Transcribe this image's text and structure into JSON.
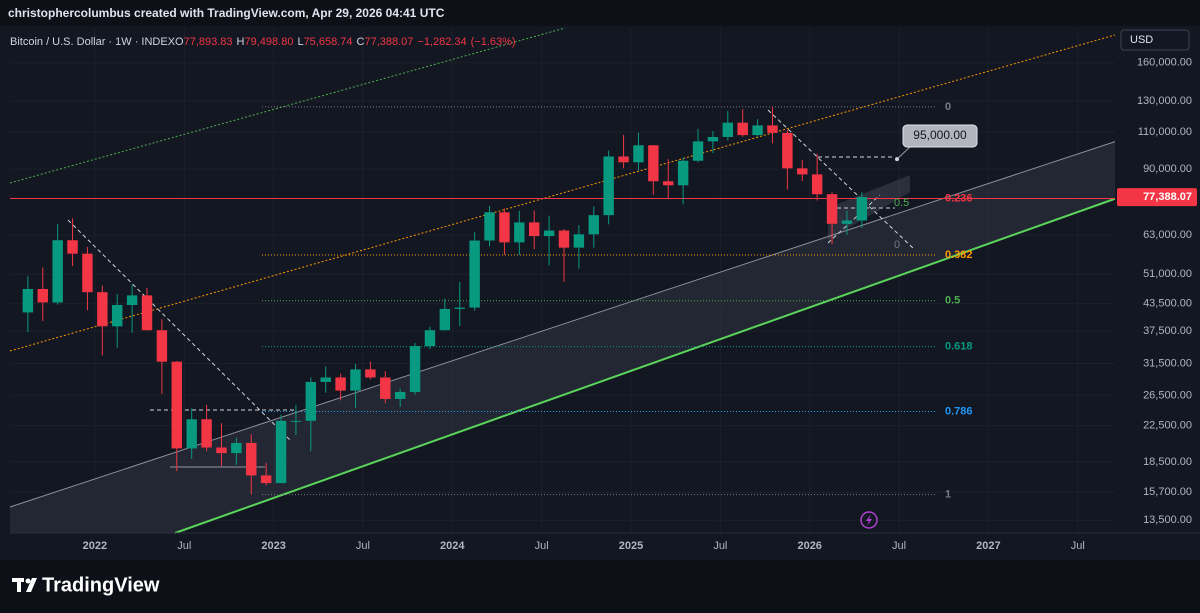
{
  "header": "christophercolumbus created with TradingView.com, Apr 29, 2026 04:41 UTC",
  "brand": "TradingView",
  "chart_data": {
    "type": "candlestick",
    "symbol": "Bitcoin / U.S. Dollar · 1W · INDEX",
    "ohlc": [
      {
        "key": "O",
        "value": 77893.83,
        "label": "77,893.83"
      },
      {
        "key": "H",
        "value": 79498.8,
        "label": "79,498.80"
      },
      {
        "key": "L",
        "value": 75658.74,
        "label": "75,658.74"
      },
      {
        "key": "C",
        "value": 77388.07,
        "label": "77,388.07"
      }
    ],
    "change": {
      "value": -1282.34,
      "label": "−1,282.34"
    },
    "change_pct": {
      "value": -1.63,
      "label": "(−1.63%)"
    },
    "currency": "USD",
    "last_price": {
      "value": 77388.07,
      "label": "77,388.07"
    },
    "x": [
      -5,
      -4,
      -3,
      -2,
      -1,
      0,
      1,
      2,
      3,
      4,
      5,
      6,
      7,
      8,
      9,
      10,
      11,
      12,
      13,
      14,
      15,
      16,
      17,
      18,
      19,
      20,
      21,
      22,
      23,
      24,
      25,
      26,
      27,
      28,
      29,
      30,
      31,
      32,
      33,
      34,
      35,
      36,
      37,
      38,
      39,
      40,
      41,
      42,
      43,
      44,
      45,
      46,
      47,
      48,
      49,
      50,
      51
    ],
    "open": [
      41500,
      47100,
      43800,
      61300,
      57000,
      46300,
      38500,
      43200,
      45500,
      37700,
      31800,
      19900,
      23300,
      20000,
      19400,
      20500,
      17200,
      16500,
      23100,
      23100,
      28500,
      29200,
      27200,
      30500,
      29200,
      26000,
      27000,
      34600,
      37700,
      42300,
      42600,
      61200,
      71300,
      60600,
      67500,
      62700,
      64600,
      58900,
      63300,
      70200,
      96400,
      93400,
      102400,
      84300,
      82500,
      94200,
      104600,
      107100,
      115700,
      108200,
      114000,
      109500,
      90400,
      87500,
      78600,
      67000,
      68200
    ],
    "high": [
      50500,
      52900,
      67000,
      69000,
      59100,
      48000,
      45800,
      48200,
      47400,
      40000,
      31900,
      24700,
      25200,
      22800,
      21100,
      21500,
      18400,
      23900,
      25200,
      29200,
      31000,
      29800,
      31400,
      31800,
      30200,
      27500,
      35200,
      38400,
      44700,
      48900,
      64000,
      73800,
      72800,
      71900,
      72000,
      70000,
      65100,
      66500,
      73600,
      99600,
      108300,
      109600,
      102500,
      95000,
      95800,
      111900,
      110600,
      123200,
      124500,
      117900,
      126200,
      111200,
      94600,
      97900,
      79500,
      72000,
      79500
    ],
    "low": [
      37300,
      39600,
      43300,
      53300,
      42000,
      32900,
      34300,
      37200,
      37600,
      26700,
      17600,
      18800,
      19600,
      18100,
      18200,
      15500,
      16300,
      16500,
      21400,
      19600,
      26900,
      25800,
      24800,
      28900,
      25400,
      24900,
      26600,
      34100,
      37600,
      38600,
      41900,
      59300,
      56600,
      56600,
      58400,
      53500,
      49000,
      52600,
      58900,
      66800,
      90500,
      89200,
      78300,
      76600,
      74400,
      93400,
      98200,
      105100,
      107300,
      107300,
      103500,
      80600,
      84400,
      76000,
      60000,
      63000,
      65500
    ],
    "close": [
      47100,
      43800,
      61300,
      57000,
      46300,
      38500,
      43200,
      45500,
      37700,
      31800,
      19900,
      23300,
      20000,
      19400,
      20500,
      17200,
      16500,
      23100,
      23100,
      28500,
      29200,
      27200,
      30500,
      29200,
      26000,
      27000,
      34600,
      37700,
      42300,
      42600,
      61200,
      71300,
      60600,
      67500,
      62700,
      64600,
      58900,
      63300,
      70200,
      96400,
      93400,
      102400,
      84300,
      82500,
      94200,
      104600,
      107100,
      115700,
      108200,
      114000,
      109500,
      90400,
      87500,
      78600,
      67000,
      68200,
      77400
    ],
    "xlim": [
      -5.7,
      68.5
    ],
    "xticks": [
      {
        "value": 0,
        "label": "2022"
      },
      {
        "value": 6,
        "label": "Jul"
      },
      {
        "value": 12,
        "label": "2023"
      },
      {
        "value": 18,
        "label": "Jul"
      },
      {
        "value": 24,
        "label": "2024"
      },
      {
        "value": 30,
        "label": "Jul"
      },
      {
        "value": 36,
        "label": "2025"
      },
      {
        "value": 42,
        "label": "Jul"
      },
      {
        "value": 48,
        "label": "2026"
      },
      {
        "value": 54,
        "label": "Jul"
      },
      {
        "value": 60,
        "label": "2027"
      },
      {
        "value": 66,
        "label": "Jul"
      }
    ],
    "ylim": [
      12600,
      193000
    ],
    "log_scale": true,
    "yticks": [
      {
        "value": 160000,
        "label": "160,000.00"
      },
      {
        "value": 130000,
        "label": "130,000.00"
      },
      {
        "value": 110000,
        "label": "110,000.00"
      },
      {
        "value": 90000,
        "label": "90,000.00"
      },
      {
        "value": 63000,
        "label": "63,000.00"
      },
      {
        "value": 51000,
        "label": "51,000.00"
      },
      {
        "value": 43500,
        "label": "43,500.00"
      },
      {
        "value": 37500,
        "label": "37,500.00"
      },
      {
        "value": 31500,
        "label": "31,500.00"
      },
      {
        "value": 26500,
        "label": "26,500.00"
      },
      {
        "value": 22500,
        "label": "22,500.00"
      },
      {
        "value": 18500,
        "label": "18,500.00"
      },
      {
        "value": 15700,
        "label": "15,700.00"
      },
      {
        "value": 13500,
        "label": "13,500.00"
      }
    ],
    "up_color": "#089981",
    "down_color": "#f23645",
    "fib_levels": [
      {
        "ratio": 0,
        "price": 126000,
        "color": "#787b86"
      },
      {
        "ratio": 0.236,
        "price": 76800,
        "color": "#f23645"
      },
      {
        "ratio": 0.382,
        "price": 56600,
        "color": "#ff9800"
      },
      {
        "ratio": 0.5,
        "price": 44200,
        "color": "#4caf50"
      },
      {
        "ratio": 0.618,
        "price": 34500,
        "color": "#089981"
      },
      {
        "ratio": 0.786,
        "price": 24300,
        "color": "#2196f3"
      },
      {
        "ratio": 1,
        "price": 15500,
        "color": "#787b86"
      }
    ],
    "pattern_levels": [
      {
        "ratio": 0.5,
        "price": 74900,
        "color": "#4caf50"
      },
      {
        "ratio": 0,
        "price": 59700,
        "color": "#787b86"
      }
    ],
    "annotation": {
      "value": 95000,
      "label": "95,000.00"
    }
  }
}
